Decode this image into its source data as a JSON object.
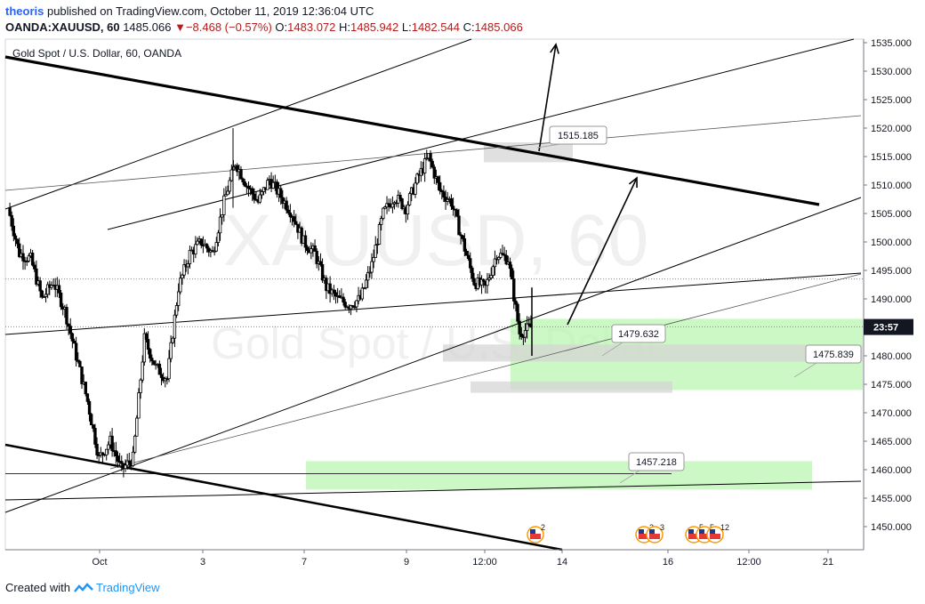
{
  "header": {
    "author": "theoris",
    "published_text": "published on TradingView.com, October 11, 2019 12:36:04 UTC",
    "symbol": "OANDA:XAUUSD, 60",
    "last": "1485.066",
    "change_arrow": "▼",
    "change": "−8.468 (−0.57%)",
    "o_label": "O:",
    "o_value": "1483.072",
    "h_label": "H:",
    "h_value": "1485.942",
    "l_label": "L:",
    "l_value": "1482.544",
    "c_label": "C:",
    "c_value": "1485.066"
  },
  "chart_title": "Gold Spot / U.S. Dollar, 60, OANDA",
  "watermark": {
    "symbol": "XAUUSD, 60",
    "name": "Gold Spot / U.S. Dollar"
  },
  "footer": {
    "created_with": "Created with",
    "brand": "TradingView"
  },
  "colors": {
    "up": "#000000",
    "down": "#000000",
    "zone": "#b9f6b0",
    "gray_zone": "#d6d6d6",
    "price_label_bg": "#131722",
    "author": "#2962ff",
    "down_text": "#b71c1c"
  },
  "chart_data": {
    "type": "candlestick",
    "title": "Gold Spot / U.S. Dollar, 60, OANDA",
    "ylim": [
      1445,
      1537
    ],
    "y_ticks": [
      "1450.000",
      "1455.000",
      "1460.000",
      "1465.000",
      "1470.000",
      "1475.000",
      "1480.000",
      "1485.000",
      "1490.000",
      "1495.000",
      "1500.000",
      "1505.000",
      "1510.000",
      "1515.000",
      "1520.000",
      "1525.000",
      "1530.000",
      "1535.000"
    ],
    "x_ticks": [
      "Oct",
      "3",
      "7",
      "9",
      "12:00",
      "14",
      "16",
      "12:00",
      "21"
    ],
    "current_price_label": "23:57",
    "last_price": 1485.066,
    "price_series_close": [
      1506,
      1498,
      1497,
      1490,
      1493,
      1488,
      1480,
      1472,
      1462,
      1465,
      1460,
      1462,
      1483,
      1478,
      1476,
      1492,
      1498,
      1500,
      1498,
      1507,
      1514,
      1510,
      1507,
      1511,
      1508,
      1505,
      1500,
      1498,
      1492,
      1490,
      1489,
      1490,
      1496,
      1505,
      1508,
      1506,
      1511,
      1515,
      1509,
      1507,
      1500,
      1493,
      1492,
      1498,
      1497,
      1484,
      1485
    ],
    "annotations": [
      {
        "label": "1515.185",
        "value": 1515.185
      },
      {
        "label": "1479.632",
        "value": 1479.632
      },
      {
        "label": "1475.839",
        "value": 1475.839
      },
      {
        "label": "1457.218",
        "value": 1457.218
      }
    ],
    "event_markers": [
      {
        "label": "2"
      },
      {
        "label": "3"
      },
      {
        "label": "3"
      },
      {
        "label": "5"
      },
      {
        "label": "5"
      },
      {
        "label": "12"
      }
    ]
  }
}
